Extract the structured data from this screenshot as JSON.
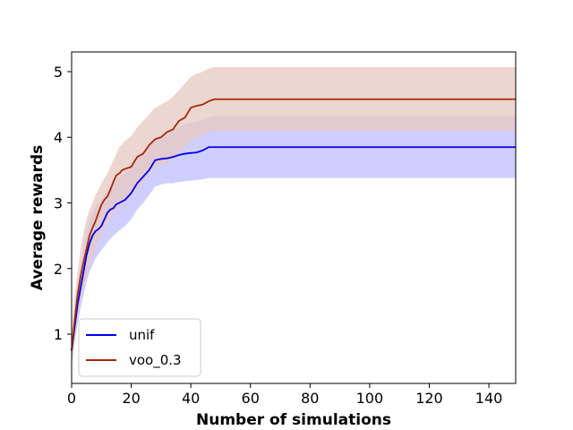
{
  "chart_data": {
    "type": "line",
    "title": "",
    "xlabel": "Number of simulations",
    "ylabel": "Average rewards",
    "xlim": [
      0,
      149
    ],
    "ylim": [
      0.25,
      5.3
    ],
    "xticks": [
      0,
      20,
      40,
      60,
      80,
      100,
      120,
      140
    ],
    "yticks": [
      1,
      2,
      3,
      4,
      5
    ],
    "grid": false,
    "legend_position": "lower-left",
    "series": [
      {
        "name": "unif",
        "color": "#0000ee",
        "band_color": "#ccccff",
        "points": [
          [
            0,
            0.75
          ],
          [
            1,
            1.1
          ],
          [
            2,
            1.45
          ],
          [
            3,
            1.7
          ],
          [
            4,
            1.95
          ],
          [
            5,
            2.2
          ],
          [
            6,
            2.38
          ],
          [
            7,
            2.5
          ],
          [
            8,
            2.57
          ],
          [
            9,
            2.6
          ],
          [
            10,
            2.65
          ],
          [
            11,
            2.75
          ],
          [
            12,
            2.85
          ],
          [
            13,
            2.9
          ],
          [
            14,
            2.92
          ],
          [
            15,
            2.98
          ],
          [
            16,
            3.0
          ],
          [
            18,
            3.05
          ],
          [
            20,
            3.15
          ],
          [
            22,
            3.3
          ],
          [
            24,
            3.4
          ],
          [
            26,
            3.5
          ],
          [
            28,
            3.65
          ],
          [
            30,
            3.67
          ],
          [
            32,
            3.68
          ],
          [
            34,
            3.7
          ],
          [
            36,
            3.73
          ],
          [
            38,
            3.75
          ],
          [
            40,
            3.76
          ],
          [
            42,
            3.77
          ],
          [
            44,
            3.8
          ],
          [
            46,
            3.85
          ],
          [
            48,
            3.85
          ],
          [
            149,
            3.85
          ]
        ],
        "upper": [
          [
            0,
            1.0
          ],
          [
            1,
            1.4
          ],
          [
            2,
            1.8
          ],
          [
            3,
            2.05
          ],
          [
            4,
            2.3
          ],
          [
            5,
            2.55
          ],
          [
            6,
            2.75
          ],
          [
            7,
            2.85
          ],
          [
            8,
            2.95
          ],
          [
            9,
            3.0
          ],
          [
            10,
            3.05
          ],
          [
            12,
            3.2
          ],
          [
            14,
            3.3
          ],
          [
            16,
            3.4
          ],
          [
            18,
            3.45
          ],
          [
            20,
            3.55
          ],
          [
            22,
            3.65
          ],
          [
            24,
            3.78
          ],
          [
            26,
            3.85
          ],
          [
            28,
            3.98
          ],
          [
            30,
            4.03
          ],
          [
            32,
            4.08
          ],
          [
            34,
            4.12
          ],
          [
            36,
            4.16
          ],
          [
            38,
            4.2
          ],
          [
            40,
            4.22
          ],
          [
            42,
            4.24
          ],
          [
            44,
            4.26
          ],
          [
            46,
            4.3
          ],
          [
            48,
            4.32
          ],
          [
            149,
            4.32
          ]
        ],
        "lower": [
          [
            0,
            0.5
          ],
          [
            1,
            0.85
          ],
          [
            2,
            1.15
          ],
          [
            3,
            1.4
          ],
          [
            4,
            1.6
          ],
          [
            5,
            1.8
          ],
          [
            6,
            1.95
          ],
          [
            7,
            2.05
          ],
          [
            8,
            2.15
          ],
          [
            9,
            2.22
          ],
          [
            10,
            2.28
          ],
          [
            12,
            2.4
          ],
          [
            14,
            2.5
          ],
          [
            16,
            2.58
          ],
          [
            18,
            2.65
          ],
          [
            20,
            2.75
          ],
          [
            22,
            2.9
          ],
          [
            24,
            3.0
          ],
          [
            26,
            3.12
          ],
          [
            28,
            3.25
          ],
          [
            30,
            3.28
          ],
          [
            32,
            3.3
          ],
          [
            34,
            3.3
          ],
          [
            36,
            3.32
          ],
          [
            38,
            3.33
          ],
          [
            40,
            3.34
          ],
          [
            42,
            3.35
          ],
          [
            44,
            3.36
          ],
          [
            46,
            3.38
          ],
          [
            48,
            3.38
          ],
          [
            149,
            3.38
          ]
        ]
      },
      {
        "name": "voo_0.3",
        "color": "#a32a0a",
        "band_color": "#e8c8c0",
        "points": [
          [
            0,
            0.75
          ],
          [
            1,
            1.2
          ],
          [
            2,
            1.6
          ],
          [
            3,
            1.88
          ],
          [
            4,
            2.1
          ],
          [
            5,
            2.3
          ],
          [
            6,
            2.5
          ],
          [
            7,
            2.62
          ],
          [
            8,
            2.72
          ],
          [
            9,
            2.85
          ],
          [
            10,
            2.97
          ],
          [
            11,
            3.05
          ],
          [
            12,
            3.1
          ],
          [
            13,
            3.2
          ],
          [
            14,
            3.32
          ],
          [
            15,
            3.42
          ],
          [
            16,
            3.45
          ],
          [
            17,
            3.5
          ],
          [
            18,
            3.52
          ],
          [
            20,
            3.55
          ],
          [
            22,
            3.7
          ],
          [
            24,
            3.75
          ],
          [
            26,
            3.88
          ],
          [
            28,
            3.97
          ],
          [
            30,
            4.0
          ],
          [
            32,
            4.08
          ],
          [
            34,
            4.12
          ],
          [
            36,
            4.25
          ],
          [
            38,
            4.3
          ],
          [
            40,
            4.45
          ],
          [
            42,
            4.48
          ],
          [
            44,
            4.5
          ],
          [
            46,
            4.55
          ],
          [
            48,
            4.58
          ],
          [
            149,
            4.58
          ]
        ],
        "upper": [
          [
            0,
            1.0
          ],
          [
            1,
            1.55
          ],
          [
            2,
            1.95
          ],
          [
            3,
            2.3
          ],
          [
            4,
            2.55
          ],
          [
            5,
            2.75
          ],
          [
            6,
            2.9
          ],
          [
            7,
            3.0
          ],
          [
            8,
            3.12
          ],
          [
            9,
            3.2
          ],
          [
            10,
            3.3
          ],
          [
            12,
            3.45
          ],
          [
            14,
            3.65
          ],
          [
            16,
            3.85
          ],
          [
            18,
            3.95
          ],
          [
            20,
            4.02
          ],
          [
            22,
            4.15
          ],
          [
            24,
            4.25
          ],
          [
            26,
            4.35
          ],
          [
            28,
            4.45
          ],
          [
            30,
            4.5
          ],
          [
            32,
            4.55
          ],
          [
            34,
            4.62
          ],
          [
            36,
            4.72
          ],
          [
            38,
            4.82
          ],
          [
            40,
            4.92
          ],
          [
            42,
            4.97
          ],
          [
            44,
            5.0
          ],
          [
            46,
            5.05
          ],
          [
            48,
            5.07
          ],
          [
            149,
            5.07
          ]
        ],
        "lower": [
          [
            0,
            0.5
          ],
          [
            1,
            0.9
          ],
          [
            2,
            1.25
          ],
          [
            3,
            1.5
          ],
          [
            4,
            1.7
          ],
          [
            5,
            1.88
          ],
          [
            6,
            2.05
          ],
          [
            7,
            2.18
          ],
          [
            8,
            2.3
          ],
          [
            9,
            2.42
          ],
          [
            10,
            2.55
          ],
          [
            12,
            2.7
          ],
          [
            14,
            2.85
          ],
          [
            16,
            2.95
          ],
          [
            18,
            3.02
          ],
          [
            20,
            3.1
          ],
          [
            22,
            3.22
          ],
          [
            24,
            3.3
          ],
          [
            26,
            3.45
          ],
          [
            28,
            3.55
          ],
          [
            30,
            3.58
          ],
          [
            32,
            3.62
          ],
          [
            34,
            3.67
          ],
          [
            36,
            3.78
          ],
          [
            38,
            3.85
          ],
          [
            40,
            3.95
          ],
          [
            42,
            4.0
          ],
          [
            44,
            4.03
          ],
          [
            46,
            4.08
          ],
          [
            48,
            4.1
          ],
          [
            149,
            4.1
          ]
        ]
      }
    ]
  }
}
